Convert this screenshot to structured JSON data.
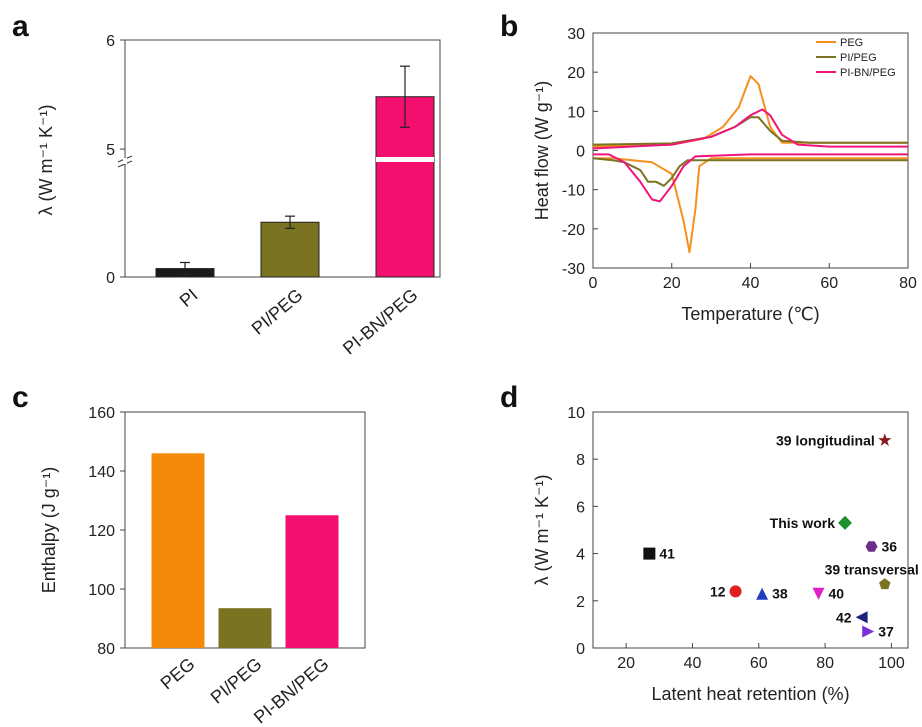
{
  "panels": {
    "a": {
      "label": "a"
    },
    "b": {
      "label": "b"
    },
    "c": {
      "label": "c"
    },
    "d": {
      "label": "d"
    }
  },
  "chart_data": [
    {
      "panel": "a",
      "type": "bar",
      "categories": [
        "PI",
        "PI/PEG",
        "PI-BN/PEG"
      ],
      "values": [
        0.18,
        1.17,
        5.48
      ],
      "errors": [
        0.13,
        0.13,
        0.28
      ],
      "colors": [
        "#1a1a1a",
        "#7a7422",
        "#f20f6e"
      ],
      "ylabel": "λ (W m⁻¹ K⁻¹)",
      "yaxis_break": true,
      "yticks": [
        "0",
        "5",
        "6"
      ]
    },
    {
      "panel": "b",
      "type": "line",
      "xlabel": "Temperature (℃)",
      "ylabel": "Heat flow (W g⁻¹)",
      "xlim": [
        0,
        80
      ],
      "ylim": [
        -30,
        30
      ],
      "xticks": [
        0,
        20,
        40,
        60,
        80
      ],
      "yticks": [
        -30,
        -20,
        -10,
        0,
        10,
        20,
        30
      ],
      "legend_position": "top-right",
      "series": [
        {
          "name": "PEG",
          "color": "#f5901e",
          "heating": [
            [
              0,
              1
            ],
            [
              20,
              1.5
            ],
            [
              28,
              3
            ],
            [
              33,
              6
            ],
            [
              37,
              11
            ],
            [
              40,
              19
            ],
            [
              42,
              17
            ],
            [
              45,
              6
            ],
            [
              48,
              2
            ],
            [
              60,
              2
            ],
            [
              80,
              2
            ]
          ],
          "cooling": [
            [
              80,
              -2
            ],
            [
              40,
              -2
            ],
            [
              30,
              -2
            ],
            [
              27,
              -4
            ],
            [
              26,
              -15
            ],
            [
              24.5,
              -26
            ],
            [
              23,
              -18
            ],
            [
              20,
              -6
            ],
            [
              15,
              -3
            ],
            [
              5,
              -2
            ],
            [
              0,
              -2
            ]
          ]
        },
        {
          "name": "PI/PEG",
          "color": "#7a7422",
          "heating": [
            [
              0,
              1.5
            ],
            [
              20,
              1.8
            ],
            [
              30,
              3.5
            ],
            [
              36,
              6
            ],
            [
              40,
              8.5
            ],
            [
              42,
              8.5
            ],
            [
              45,
              5
            ],
            [
              48,
              2.5
            ],
            [
              55,
              2
            ],
            [
              80,
              2
            ]
          ],
          "cooling": [
            [
              80,
              -2.5
            ],
            [
              40,
              -2.5
            ],
            [
              24,
              -2.5
            ],
            [
              22,
              -4
            ],
            [
              20,
              -7
            ],
            [
              18,
              -9
            ],
            [
              16,
              -8
            ],
            [
              14,
              -8
            ],
            [
              12,
              -5
            ],
            [
              8,
              -3
            ],
            [
              5,
              -2.5
            ],
            [
              0,
              -2
            ]
          ]
        },
        {
          "name": "PI-BN/PEG",
          "color": "#f0157a",
          "heating": [
            [
              0,
              0.5
            ],
            [
              20,
              1.5
            ],
            [
              30,
              3.5
            ],
            [
              36,
              6
            ],
            [
              40,
              9
            ],
            [
              43,
              10.5
            ],
            [
              45,
              9
            ],
            [
              48,
              4
            ],
            [
              52,
              1.5
            ],
            [
              60,
              1
            ],
            [
              80,
              1
            ]
          ],
          "cooling": [
            [
              80,
              -1
            ],
            [
              40,
              -1
            ],
            [
              26,
              -1.5
            ],
            [
              23,
              -4
            ],
            [
              20,
              -9
            ],
            [
              17,
              -13
            ],
            [
              15,
              -12.5
            ],
            [
              12,
              -8
            ],
            [
              8,
              -3
            ],
            [
              4,
              -1
            ],
            [
              0,
              -1
            ]
          ]
        }
      ]
    },
    {
      "panel": "c",
      "type": "bar",
      "categories": [
        "PEG",
        "PI/PEG",
        "PI-BN/PEG"
      ],
      "values": [
        146,
        93.5,
        125
      ],
      "colors": [
        "#f58a0a",
        "#7a7422",
        "#f20f6e"
      ],
      "ylabel": "Enthalpy (J g⁻¹)",
      "ylim": [
        80,
        160
      ],
      "yticks": [
        80,
        100,
        120,
        140,
        160
      ]
    },
    {
      "panel": "d",
      "type": "scatter",
      "xlabel": "Latent heat retention (%)",
      "ylabel": "λ (W m⁻¹ K⁻¹)",
      "xlim": [
        10,
        105
      ],
      "ylim": [
        0,
        10
      ],
      "xticks": [
        20,
        40,
        60,
        80,
        100
      ],
      "yticks": [
        0,
        2,
        4,
        6,
        8,
        10
      ],
      "points": [
        {
          "label": "39 longitudinal",
          "x": 98,
          "y": 8.8,
          "marker": "star",
          "color": "#8b1a1a",
          "side": "left"
        },
        {
          "label": "This work",
          "x": 86,
          "y": 5.3,
          "marker": "diamond",
          "color": "#1e8f2e",
          "side": "left"
        },
        {
          "label": "36",
          "x": 94,
          "y": 4.3,
          "marker": "hexagon",
          "color": "#6a2d8a",
          "side": "right"
        },
        {
          "label": "41",
          "x": 27,
          "y": 4.0,
          "marker": "square",
          "color": "#111111",
          "side": "right"
        },
        {
          "label": "39 transversal",
          "x": 98,
          "y": 2.7,
          "marker": "pentagon",
          "color": "#7a7422",
          "side": "above"
        },
        {
          "label": "12",
          "x": 53,
          "y": 2.4,
          "marker": "circle",
          "color": "#e02020",
          "side": "left"
        },
        {
          "label": "38",
          "x": 61,
          "y": 2.3,
          "marker": "triangle-up",
          "color": "#1f3fbf",
          "side": "right"
        },
        {
          "label": "40",
          "x": 78,
          "y": 2.3,
          "marker": "triangle-down",
          "color": "#e01fc8",
          "side": "right"
        },
        {
          "label": "42",
          "x": 91,
          "y": 1.3,
          "marker": "triangle-left",
          "color": "#1a237e",
          "side": "left"
        },
        {
          "label": "37",
          "x": 93,
          "y": 0.7,
          "marker": "triangle-right",
          "color": "#7b2fd6",
          "side": "right"
        }
      ]
    }
  ]
}
